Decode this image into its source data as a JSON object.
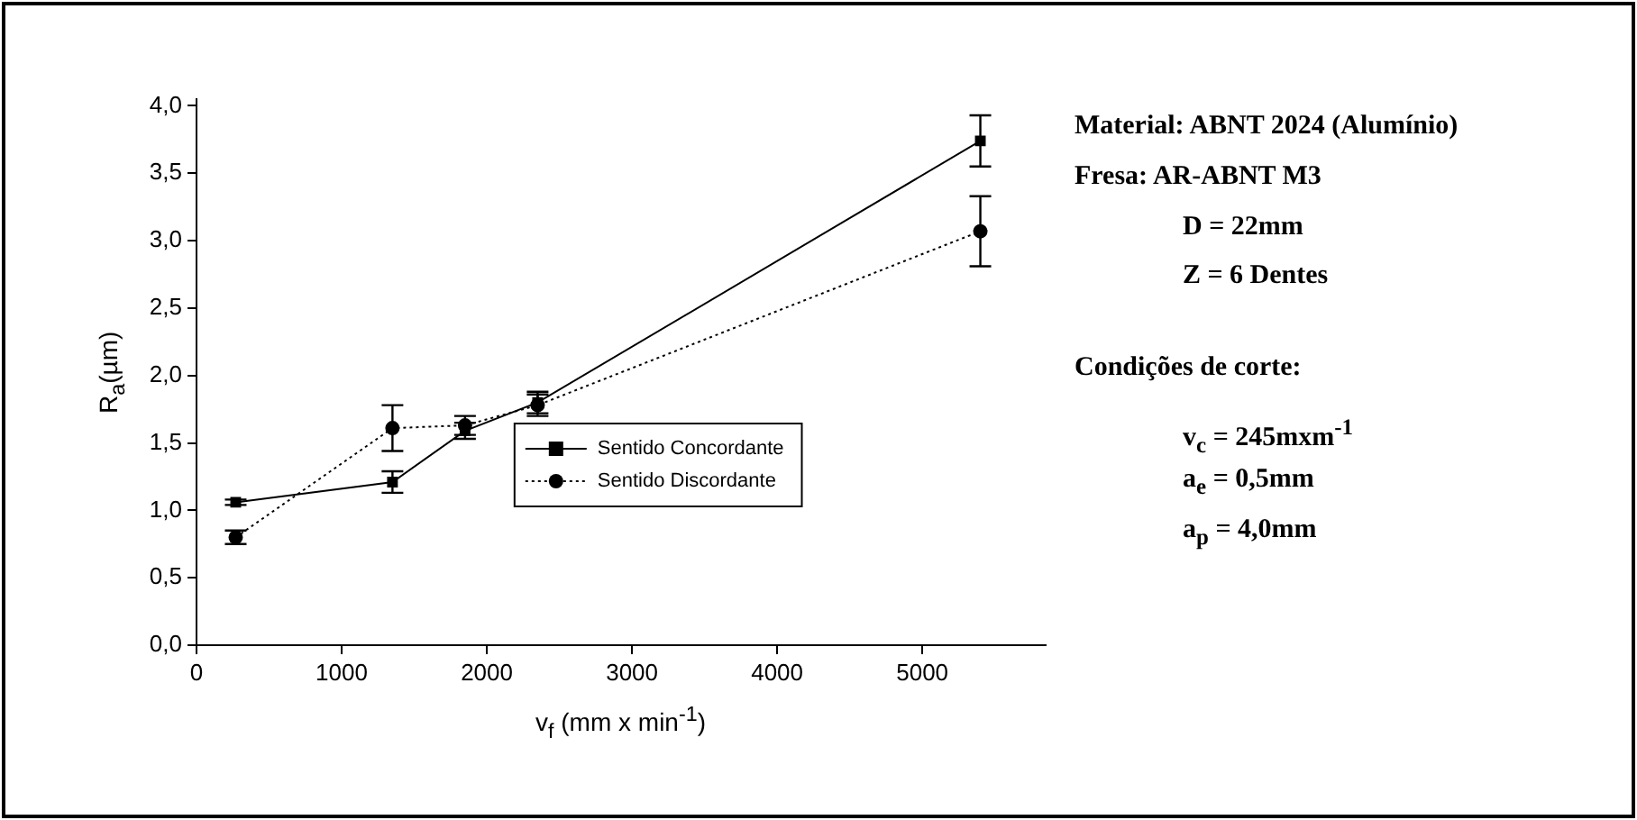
{
  "chart_data": {
    "type": "line",
    "xlabel": "v$_{f}$ (mm x min$^{-1}$)",
    "ylabel": "R$_{a}$(µm)",
    "xlim": [
      0,
      5850
    ],
    "xticks": [
      0,
      1000,
      2000,
      3000,
      4000,
      5000
    ],
    "ylim": [
      0,
      4.05
    ],
    "yticks": [
      {
        "value": 0,
        "label": "0,0"
      },
      {
        "value": 0.5,
        "label": "0,5"
      },
      {
        "value": 1,
        "label": "1,0"
      },
      {
        "value": 1.5,
        "label": "1,5"
      },
      {
        "value": 2,
        "label": "2,0"
      },
      {
        "value": 2.5,
        "label": "2,5"
      },
      {
        "value": 3,
        "label": "3,0"
      },
      {
        "value": 3.5,
        "label": "3,5"
      },
      {
        "value": 4,
        "label": "4,0"
      }
    ],
    "x": [
      270,
      1350,
      1850,
      2350,
      5400
    ],
    "series": [
      {
        "name": "Sentido Concordante",
        "color": "#000000",
        "marker": "square",
        "line_style": "solid",
        "values": [
          1.06,
          1.21,
          1.59,
          1.8,
          3.74
        ],
        "errors": [
          0.02,
          0.08,
          0.06,
          0.08,
          0.19
        ]
      },
      {
        "name": "Sentido Discordante",
        "color": "#000000",
        "marker": "circle",
        "line_style": "dotted",
        "values": [
          0.8,
          1.61,
          1.63,
          1.78,
          3.07
        ],
        "errors": [
          0.05,
          0.17,
          0.07,
          0.08,
          0.26
        ]
      }
    ],
    "legend": "right",
    "annotations": [
      "Material: ABNT 2024 (Alumínio)",
      "Fresa: AR-ABNT M3",
      "D = 22mm",
      "Z = 6 Dentes",
      "Condições de corte:",
      "v$_{c}$ = 245mxm$^{-1}$",
      "a$_{e}$ = 0,5mm",
      "a$_{p}$ = 4,0mm"
    ]
  }
}
